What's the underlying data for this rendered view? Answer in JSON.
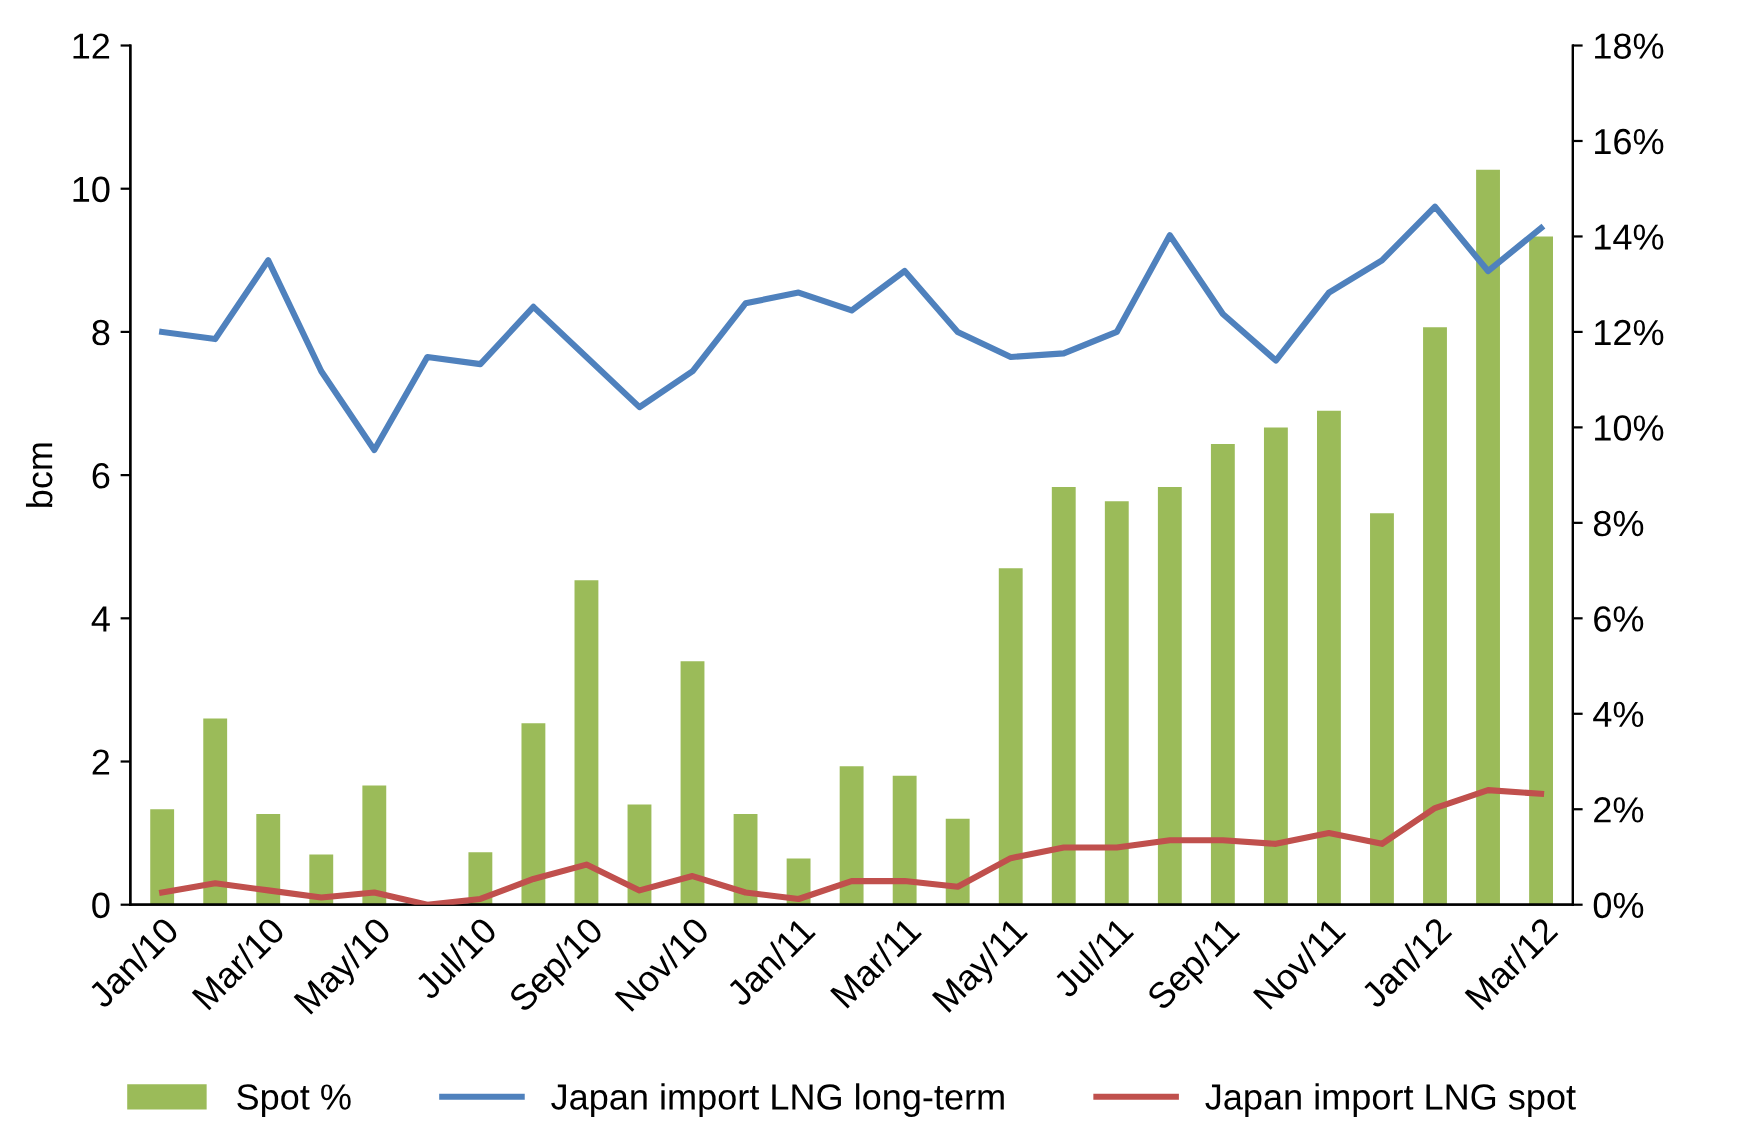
{
  "chart_data": {
    "type": "bar",
    "ylabel": "bcm",
    "categories": [
      "Jan/10",
      null,
      "Mar/10",
      null,
      "May/10",
      null,
      "Jul/10",
      null,
      "Sep/10",
      null,
      "Nov/10",
      null,
      "Jan/11",
      null,
      "Mar/11",
      null,
      "May/11",
      null,
      "Jul/11",
      null,
      "Sep/11",
      null,
      "Nov/11",
      null,
      "Jan/12",
      null,
      "Mar/12"
    ],
    "series": [
      {
        "name": "Spot %",
        "axis": "y2",
        "color": "#9bbb59",
        "values": [
          2.0,
          3.9,
          1.9,
          1.05,
          2.5,
          0,
          1.1,
          3.8,
          6.8,
          2.1,
          5.1,
          1.9,
          0.97,
          2.9,
          2.7,
          1.8,
          7.05,
          8.75,
          8.45,
          8.75,
          9.65,
          10.0,
          10.35,
          8.2,
          12.1,
          15.4,
          14.0
        ]
      },
      {
        "name": "Japan import LNG long-term",
        "type": "line",
        "color": "#4f81bd",
        "values": [
          8.0,
          7.9,
          9.0,
          7.45,
          6.35,
          7.65,
          7.55,
          8.35,
          7.65,
          6.95,
          7.45,
          8.4,
          8.55,
          8.3,
          8.85,
          8.0,
          7.65,
          7.7,
          8.0,
          9.35,
          8.25,
          7.6,
          8.55,
          9.0,
          9.75,
          8.85,
          9.45
        ]
      },
      {
        "name": "Japan import LNG spot",
        "type": "line",
        "color": "#c0504d",
        "values": [
          0.17,
          0.3,
          0.2,
          0.1,
          0.17,
          0,
          0.08,
          0.36,
          0.56,
          0.2,
          0.4,
          0.17,
          0.08,
          0.33,
          0.33,
          0.25,
          0.65,
          0.8,
          0.8,
          0.9,
          0.9,
          0.85,
          1.0,
          0.85,
          1.35,
          1.6,
          1.55
        ]
      }
    ],
    "ylim": [
      0,
      12
    ],
    "yticks": [
      0,
      2,
      4,
      6,
      8,
      10,
      12
    ],
    "y2lim": [
      0,
      18
    ],
    "y2ticks": [
      {
        "value": 0,
        "label": "0%"
      },
      {
        "value": 2,
        "label": "2%"
      },
      {
        "value": 4,
        "label": "4%"
      },
      {
        "value": 6,
        "label": "6%"
      },
      {
        "value": 8,
        "label": "8%"
      },
      {
        "value": 10,
        "label": "10%"
      },
      {
        "value": 12,
        "label": "12%"
      },
      {
        "value": 14,
        "label": "14%"
      },
      {
        "value": 16,
        "label": "16%"
      },
      {
        "value": 18,
        "label": "18%"
      }
    ],
    "legend": "bottom",
    "grid": false
  }
}
